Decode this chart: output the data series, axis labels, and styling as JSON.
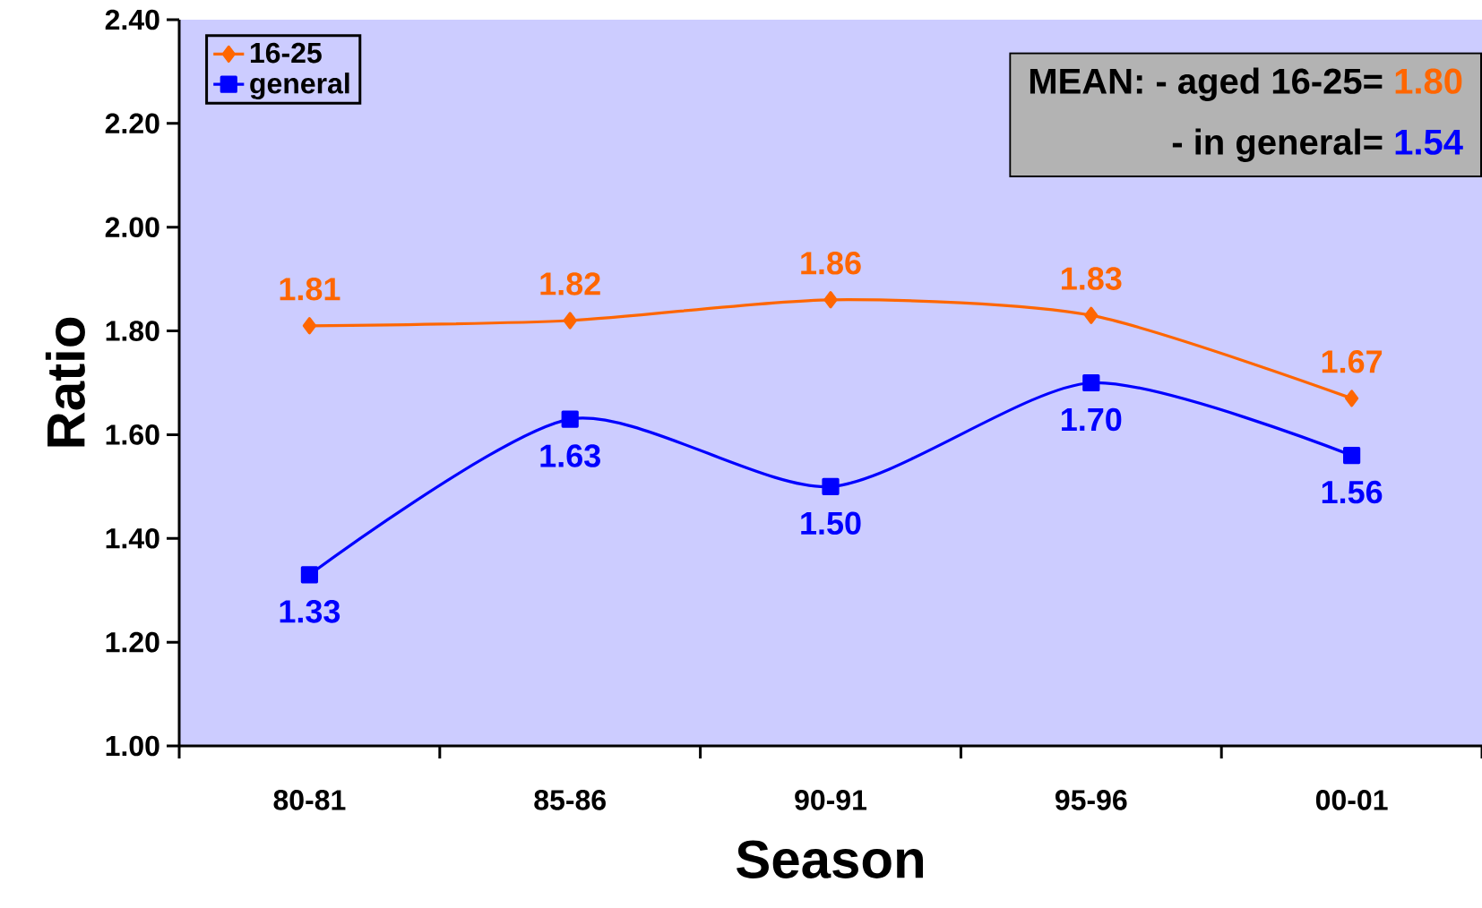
{
  "chart_data": {
    "type": "line",
    "xlabel": "Season",
    "ylabel": "Ratio",
    "categories": [
      "80-81",
      "85-86",
      "90-91",
      "95-96",
      "00-01"
    ],
    "series": [
      {
        "name": "16-25",
        "color": "#ff6600",
        "marker": "diamond",
        "values": [
          1.81,
          1.82,
          1.86,
          1.83,
          1.67
        ],
        "value_labels": [
          "1.81",
          "1.82",
          "1.86",
          "1.83",
          "1.67"
        ]
      },
      {
        "name": "general",
        "color": "#0000ff",
        "marker": "square",
        "values": [
          1.33,
          1.63,
          1.5,
          1.7,
          1.56
        ],
        "value_labels": [
          "1.33",
          "1.63",
          "1.50",
          "1.70",
          "1.56"
        ]
      }
    ],
    "ylim": [
      1.0,
      2.4
    ],
    "yticks": [
      {
        "value": 1.0,
        "label": "1.00"
      },
      {
        "value": 1.2,
        "label": "1.20"
      },
      {
        "value": 1.4,
        "label": "1.40"
      },
      {
        "value": 1.6,
        "label": "1.60"
      },
      {
        "value": 1.8,
        "label": "1.80"
      },
      {
        "value": 2.0,
        "label": "2.00"
      },
      {
        "value": 2.2,
        "label": "2.20"
      },
      {
        "value": 2.4,
        "label": "2.40"
      }
    ],
    "annotations": [
      "MEAN: - aged 16-25=",
      "1.80",
      "- in general=",
      "1.54"
    ],
    "legend": "top left",
    "grid": false
  }
}
